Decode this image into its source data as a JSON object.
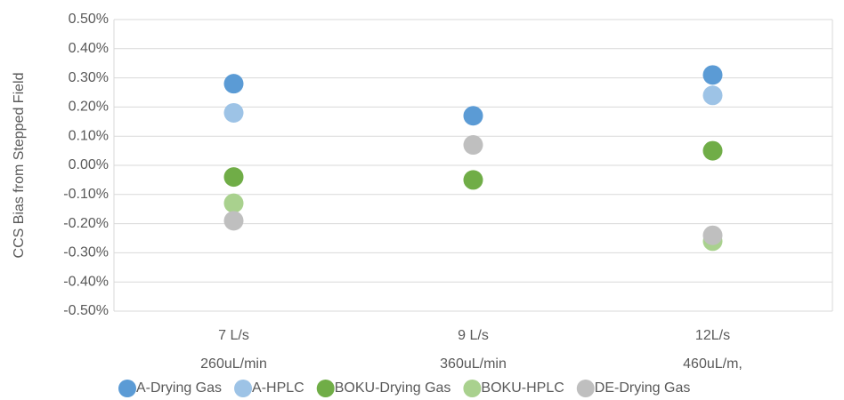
{
  "chart_data": {
    "type": "scatter",
    "y_label": "CCS Bias from Stepped Field",
    "categories": [
      [
        "7 L/s",
        "260uL/min"
      ],
      [
        "9 L/s",
        "360uL/min"
      ],
      [
        "12L/s",
        "460uL/m,"
      ]
    ],
    "series": [
      {
        "name": "A-Drying Gas",
        "color": "#5b9bd5",
        "values": [
          0.28,
          0.17,
          0.31
        ]
      },
      {
        "name": "A-HPLC",
        "color": "#9dc3e6",
        "values": [
          0.18,
          null,
          0.24
        ]
      },
      {
        "name": "BOKU-Drying Gas",
        "color": "#70ad47",
        "values": [
          -0.04,
          -0.05,
          0.05
        ]
      },
      {
        "name": "BOKU-HPLC",
        "color": "#a9d18e",
        "values": [
          -0.13,
          null,
          -0.26
        ]
      },
      {
        "name": "DE-Drying Gas",
        "color": "#bfbfbf",
        "values": [
          -0.19,
          0.07,
          -0.24
        ]
      }
    ],
    "ylim": [
      -0.5,
      0.5
    ],
    "yticks": [
      {
        "value": -0.5,
        "label": "-0.50%"
      },
      {
        "value": -0.4,
        "label": "-0.40%"
      },
      {
        "value": -0.3,
        "label": "-0.30%"
      },
      {
        "value": -0.2,
        "label": "-0.20%"
      },
      {
        "value": -0.1,
        "label": "-0.10%"
      },
      {
        "value": 0,
        "label": "0.00%"
      },
      {
        "value": 0.1,
        "label": "0.10%"
      },
      {
        "value": 0.2,
        "label": "0.20%"
      },
      {
        "value": 0.3,
        "label": "0.30%"
      },
      {
        "value": 0.4,
        "label": "0.40%"
      },
      {
        "value": 0.5,
        "label": "0.50%"
      }
    ],
    "grid": true,
    "legend": "bottom"
  }
}
